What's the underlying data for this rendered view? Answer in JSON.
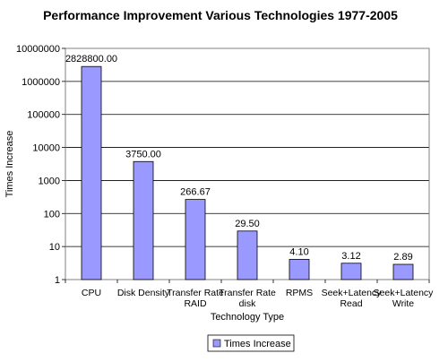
{
  "chart_data": {
    "type": "bar",
    "title": "Performance Improvement Various Technologies 1977-2005",
    "xlabel": "Technology Type",
    "ylabel": "Times Increase",
    "y_scale": "log",
    "ylim": [
      1,
      10000000
    ],
    "y_ticks": [
      "1",
      "10",
      "100",
      "1000",
      "10000",
      "100000",
      "1000000",
      "10000000"
    ],
    "grid": true,
    "legend_position": "bottom",
    "bar_color": "#9999ff",
    "categories": [
      [
        "CPU"
      ],
      [
        "Disk Density"
      ],
      [
        "Transfer Rate",
        "RAID"
      ],
      [
        "Transfer Rate",
        "disk"
      ],
      [
        "RPMS"
      ],
      [
        "Seek+Latency",
        "Read"
      ],
      [
        "Seek+Latency",
        "Write"
      ]
    ],
    "series": [
      {
        "name": "Times Increase",
        "values": [
          2828800,
          3750,
          266.67,
          29.5,
          4.1,
          3.12,
          2.89
        ],
        "labels": [
          "2828800.00",
          "3750.00",
          "266.67",
          "29.50",
          "4.10",
          "3.12",
          "2.89"
        ]
      }
    ]
  }
}
